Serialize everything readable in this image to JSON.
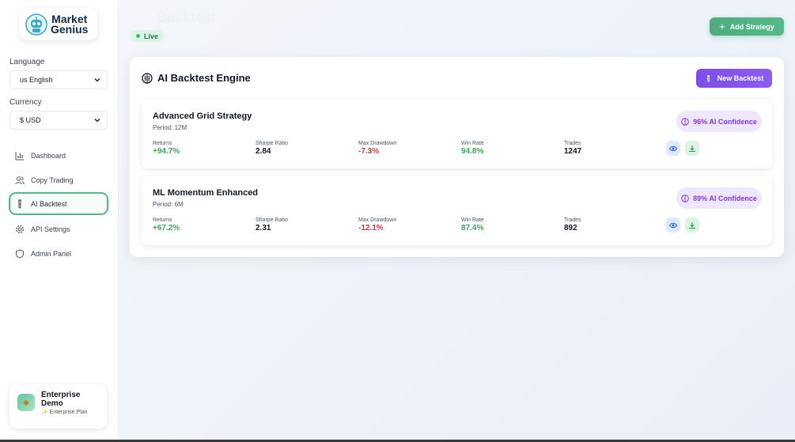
{
  "brand": {
    "line1": "Market",
    "line2": "Genius"
  },
  "language": {
    "label": "Language",
    "value": "us English"
  },
  "currency": {
    "label": "Currency",
    "value": "$ USD"
  },
  "nav": [
    {
      "label": "Dashboard",
      "icon": "bar-chart-icon"
    },
    {
      "label": "Copy Trading",
      "icon": "users-icon"
    },
    {
      "label": "AI Backtest",
      "icon": "test-tube-icon",
      "active": true
    },
    {
      "label": "API Settings",
      "icon": "gear-icon"
    },
    {
      "label": "Admin Panel",
      "icon": "shield-icon"
    }
  ],
  "user": {
    "name_line1": "Enterprise",
    "name_line2": "Demo",
    "plan": "✨ Enterprise Plan"
  },
  "header": {
    "ghost_title": "Backtest",
    "status": "Live",
    "add_button": "Add Strategy"
  },
  "panel": {
    "title": "AI Backtest Engine",
    "new_button": "New Backtest"
  },
  "metric_labels": [
    "Returns",
    "Sharpe Ratio",
    "Max Drawdown",
    "Win Rate",
    "Trades"
  ],
  "strategies": [
    {
      "name": "Advanced Grid Strategy",
      "period": "Period: 12M",
      "confidence": "96% AI Confidence",
      "returns": "+94.7%",
      "sharpe": "2.84",
      "drawdown": "-7.3%",
      "win_rate": "94.8%",
      "trades": "1247"
    },
    {
      "name": "ML Momentum Enhanced",
      "period": "Period: 6M",
      "confidence": "89% AI Confidence",
      "returns": "+67.2%",
      "sharpe": "2.31",
      "drawdown": "-12.1%",
      "win_rate": "87.4%",
      "trades": "892"
    }
  ],
  "colors": {
    "accent_green": "#4fb985",
    "accent_purple": "#7c4dea",
    "positive": "#3aa65e",
    "negative": "#d63a3a"
  }
}
